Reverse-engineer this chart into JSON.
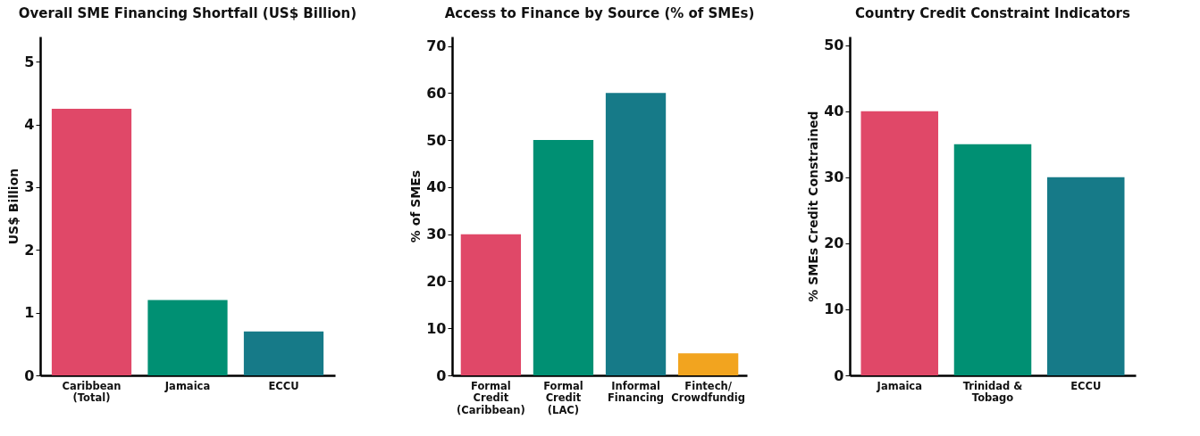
{
  "chart_data": [
    {
      "type": "bar",
      "title": "Overall SME Financing Shortfall (US$ Billion)",
      "ylabel": "US$ Billion",
      "categories": [
        "Caribbean\n(Total)",
        "Jamaica",
        "ECCU"
      ],
      "values": [
        4.25,
        1.2,
        0.7
      ],
      "colors": [
        "#e04868",
        "#009073",
        "#167a88"
      ],
      "ylim": [
        0,
        5.4
      ],
      "yticks": [
        0,
        1,
        2,
        3,
        4,
        5
      ],
      "grid": false,
      "legend": false
    },
    {
      "type": "bar",
      "title": "Access to Finance by Source (% of SMEs)",
      "ylabel": "% of SMEs",
      "categories": [
        "Formal\nCredit\n(Caribbean)",
        "Formal\nCredit\n(LAC)",
        "Informal\nFinancing",
        "Fintech/\nCrowdfundig"
      ],
      "values": [
        30,
        50,
        60,
        4.7
      ],
      "colors": [
        "#e04868",
        "#009073",
        "#167a88",
        "#f2a41f"
      ],
      "ylim": [
        0,
        72
      ],
      "yticks": [
        0,
        10,
        20,
        30,
        40,
        50,
        60,
        70
      ],
      "grid": false,
      "legend": false
    },
    {
      "type": "bar",
      "title": "Country Credit Constraint Indicators",
      "ylabel": "% SMEs Credit Constrained",
      "categories": [
        "Jamaica",
        "Trinidad &\nTobago",
        "ECCU"
      ],
      "values": [
        40,
        35,
        30
      ],
      "colors": [
        "#e04868",
        "#009073",
        "#167a88"
      ],
      "ylim": [
        0,
        51.3
      ],
      "yticks": [
        0,
        10,
        20,
        30,
        40,
        50
      ],
      "grid": false,
      "legend": false
    }
  ]
}
